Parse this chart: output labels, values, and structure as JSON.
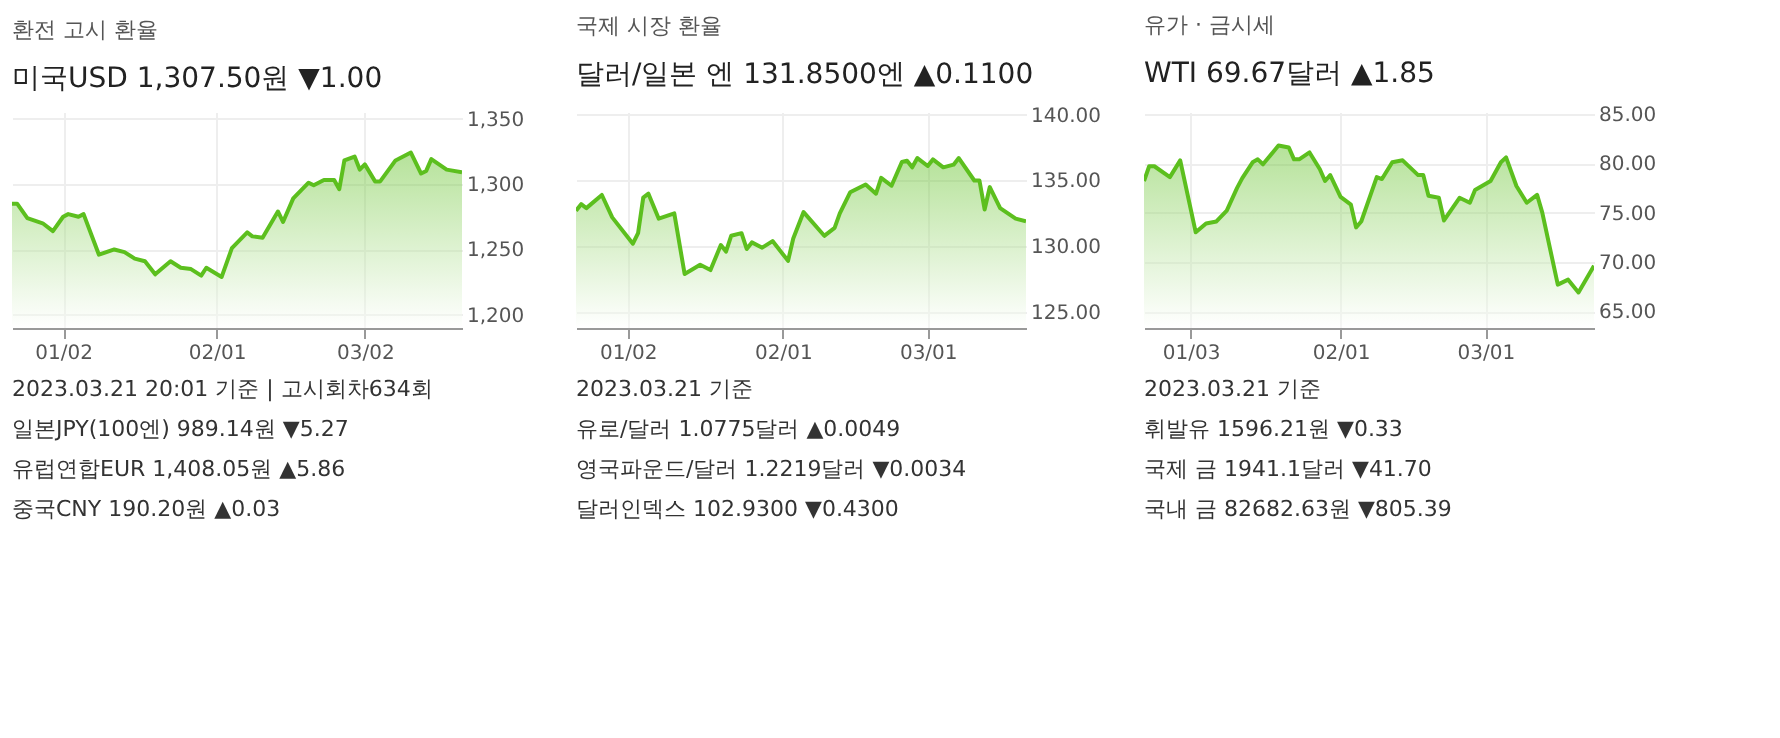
{
  "chart_data": [
    {
      "type": "area",
      "title": "환전 고시 환율",
      "subtitle": "미국USD   1,307.50원 ▼1.00",
      "grid": true,
      "x": [
        "2022-12-23",
        "2022-12-24",
        "2022-12-26",
        "2022-12-29",
        "2022-12-31",
        "2023-01-02",
        "2023-01-03",
        "2023-01-05",
        "2023-01-06",
        "2023-01-09",
        "2023-01-12",
        "2023-01-14",
        "2023-01-16",
        "2023-01-18",
        "2023-01-20",
        "2023-01-23",
        "2023-01-25",
        "2023-01-27",
        "2023-01-29",
        "2023-01-30",
        "2023-02-02",
        "2023-02-04",
        "2023-02-07",
        "2023-02-08",
        "2023-02-10",
        "2023-02-13",
        "2023-02-14",
        "2023-02-16",
        "2023-02-19",
        "2023-02-20",
        "2023-02-22",
        "2023-02-24",
        "2023-02-25",
        "2023-02-26",
        "2023-02-28",
        "2023-03-01",
        "2023-03-02",
        "2023-03-04",
        "2023-03-05",
        "2023-03-08",
        "2023-03-11",
        "2023-03-13",
        "2023-03-14",
        "2023-03-15",
        "2023-03-18",
        "2023-03-21"
      ],
      "series": [
        {
          "color": "#5cbf1e",
          "values": [
            1285,
            1285,
            1274,
            1270,
            1264,
            1275,
            1277,
            1275,
            1277,
            1246,
            1250,
            1248,
            1243,
            1241,
            1231,
            1241,
            1236,
            1235,
            1230,
            1236,
            1229,
            1251,
            1263,
            1260,
            1259,
            1279,
            1271,
            1289,
            1301,
            1299,
            1303,
            1303,
            1296,
            1318,
            1321,
            1311,
            1315,
            1302,
            1302,
            1318,
            1324,
            1308,
            1310,
            1319,
            1311,
            1309
          ]
        }
      ],
      "xlim": [
        "2022-12-23",
        "2023-03-21"
      ],
      "xticks": [
        {
          "value": "2023-01-02",
          "label": "01/02"
        },
        {
          "value": "2023-02-01",
          "label": "02/01"
        },
        {
          "value": "2023-03-02",
          "label": "03/02"
        }
      ],
      "ylim": [
        1190,
        1355
      ],
      "yticks": [
        {
          "value": 1200,
          "label": "1,200"
        },
        {
          "value": 1250,
          "label": "1,250"
        },
        {
          "value": 1300,
          "label": "1,300"
        },
        {
          "value": 1350,
          "label": "1,350"
        }
      ],
      "annotations": [
        "2023.03.21 20:01 기준 | 고시회차634회",
        "일본JPY(100엔)   989.14원 ▼5.27",
        "유럽연합EUR   1,408.05원 ▲5.86",
        "중국CNY   190.20원 ▲0.03"
      ]
    },
    {
      "type": "area",
      "title": "국제 시장 환율",
      "subtitle": "달러/일본 엔   131.8500엔 ▲0.1100",
      "grid": true,
      "x": [
        "2022-12-23",
        "2022-12-24",
        "2022-12-25",
        "2022-12-28",
        "2022-12-30",
        "2023-01-03",
        "2023-01-04",
        "2023-01-05",
        "2023-01-06",
        "2023-01-08",
        "2023-01-11",
        "2023-01-13",
        "2023-01-16",
        "2023-01-18",
        "2023-01-20",
        "2023-01-21",
        "2023-01-22",
        "2023-01-24",
        "2023-01-25",
        "2023-01-26",
        "2023-01-28",
        "2023-01-30",
        "2023-02-02",
        "2023-02-03",
        "2023-02-05",
        "2023-02-09",
        "2023-02-11",
        "2023-02-12",
        "2023-02-14",
        "2023-02-17",
        "2023-02-19",
        "2023-02-20",
        "2023-02-22",
        "2023-02-24",
        "2023-02-25",
        "2023-02-26",
        "2023-02-27",
        "2023-03-01",
        "2023-03-02",
        "2023-03-04",
        "2023-03-06",
        "2023-03-07",
        "2023-03-10",
        "2023-03-11",
        "2023-03-12",
        "2023-03-13",
        "2023-03-15",
        "2023-03-18",
        "2023-03-20"
      ],
      "series": [
        {
          "color": "#5cbf1e",
          "values": [
            132.7,
            133.2,
            132.9,
            133.9,
            132.2,
            130.2,
            131.0,
            133.7,
            134.0,
            132.1,
            132.5,
            127.9,
            128.6,
            128.2,
            130.1,
            129.6,
            130.8,
            131.0,
            129.8,
            130.3,
            129.9,
            130.4,
            128.9,
            130.6,
            132.6,
            130.8,
            131.4,
            132.5,
            134.1,
            134.7,
            134.0,
            135.2,
            134.6,
            136.4,
            136.5,
            136.0,
            136.7,
            136.1,
            136.6,
            136.0,
            136.2,
            136.7,
            135.0,
            135.0,
            132.8,
            134.5,
            132.9,
            132.1,
            131.9
          ]
        }
      ],
      "xlim": [
        "2022-12-23",
        "2023-03-20"
      ],
      "xticks": [
        {
          "value": "2023-01-02",
          "label": "01/02"
        },
        {
          "value": "2023-02-01",
          "label": "02/01"
        },
        {
          "value": "2023-03-01",
          "label": "03/01"
        }
      ],
      "ylim": [
        123.8,
        140.2
      ],
      "yticks": [
        {
          "value": 125,
          "label": "125.00"
        },
        {
          "value": 130,
          "label": "130.00"
        },
        {
          "value": 135,
          "label": "135.00"
        },
        {
          "value": 140,
          "label": "140.00"
        }
      ],
      "annotations": [
        "2023.03.21 기준",
        "유로/달러   1.0775달러 ▲0.0049",
        "영국파운드/달러   1.2219달러 ▼0.0034",
        "달러인덱스   102.9300 ▼0.4300"
      ]
    },
    {
      "type": "area",
      "title": "유가 · 금시세",
      "subtitle": "WTI   69.67달러 ▲1.85",
      "grid": true,
      "x": [
        "2022-12-25",
        "2022-12-26",
        "2022-12-27",
        "2022-12-30",
        "2023-01-01",
        "2023-01-04",
        "2023-01-06",
        "2023-01-08",
        "2023-01-10",
        "2023-01-12",
        "2023-01-13",
        "2023-01-15",
        "2023-01-16",
        "2023-01-17",
        "2023-01-20",
        "2023-01-22",
        "2023-01-23",
        "2023-01-24",
        "2023-01-26",
        "2023-01-28",
        "2023-01-29",
        "2023-01-30",
        "2023-02-01",
        "2023-02-03",
        "2023-02-04",
        "2023-02-05",
        "2023-02-07",
        "2023-02-08",
        "2023-02-09",
        "2023-02-11",
        "2023-02-13",
        "2023-02-16",
        "2023-02-17",
        "2023-02-18",
        "2023-02-20",
        "2023-02-21",
        "2023-02-24",
        "2023-02-26",
        "2023-02-27",
        "2023-03-02",
        "2023-03-04",
        "2023-03-05",
        "2023-03-07",
        "2023-03-09",
        "2023-03-11",
        "2023-03-12",
        "2023-03-15",
        "2023-03-17",
        "2023-03-19",
        "2023-03-22"
      ],
      "series": [
        {
          "color": "#5cbf1e",
          "values": [
            78.2,
            79.7,
            79.7,
            78.6,
            80.3,
            73.0,
            73.9,
            74.1,
            75.2,
            77.5,
            78.5,
            80.1,
            80.4,
            79.9,
            81.8,
            81.6,
            80.4,
            80.4,
            81.1,
            79.4,
            78.2,
            78.8,
            76.6,
            75.8,
            73.5,
            74.1,
            77.1,
            78.6,
            78.4,
            80.1,
            80.3,
            78.8,
            78.8,
            76.7,
            76.5,
            74.2,
            76.5,
            76.0,
            77.3,
            78.2,
            80.1,
            80.6,
            77.7,
            76.0,
            76.8,
            75.0,
            67.7,
            68.2,
            66.9,
            69.6
          ]
        }
      ],
      "xlim": [
        "2022-12-25",
        "2023-03-22"
      ],
      "xticks": [
        {
          "value": "2023-01-03",
          "label": "01/03"
        },
        {
          "value": "2023-02-01",
          "label": "02/01"
        },
        {
          "value": "2023-03-01",
          "label": "03/01"
        }
      ],
      "ylim": [
        63.3,
        85.2
      ],
      "yticks": [
        {
          "value": 65,
          "label": "65.00"
        },
        {
          "value": 70,
          "label": "70.00"
        },
        {
          "value": 75,
          "label": "75.00"
        },
        {
          "value": 80,
          "label": "80.00"
        },
        {
          "value": 85,
          "label": "85.00"
        }
      ],
      "annotations": [
        "2023.03.21 기준",
        "휘발유   1596.21원 ▼0.33",
        "국제 금   1941.1달러 ▼41.70",
        "국내 금   82682.63원 ▼805.39"
      ]
    }
  ]
}
